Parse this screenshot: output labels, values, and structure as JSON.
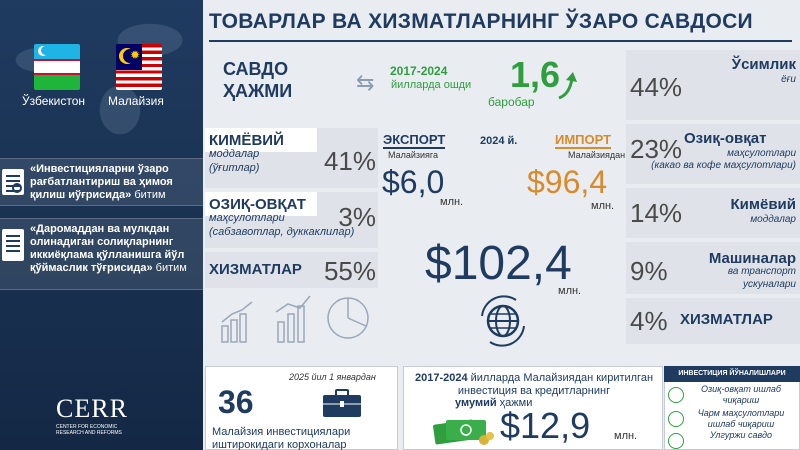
{
  "title": "ТОВАРЛАР ВА ХИЗМАТЛАРНИНГ ЎЗАРО САВДОСИ",
  "countries": {
    "left": "Ўзбекистон",
    "right": "Малайзия"
  },
  "agreements": [
    {
      "bold": "«Инвестицияларни ўзаро рағбатлантириш ва ҳимоя қилиш иўғрисида»",
      "suffix": "битим"
    },
    {
      "bold": "«Даромаддан ва мулкдан олинадиган солиқларнинг иккиёқлама қўлланишга йўл қўймаслик тўғрисида»",
      "suffix": "битим"
    }
  ],
  "logo": {
    "text": "CERR",
    "sub": "CENTER FOR ECONOMIC RESEARCH AND REFORMS"
  },
  "trade": {
    "label_line1": "САВДО",
    "label_line2": "ҲАЖМИ",
    "growth_years": "2017-2024",
    "growth_note": "йилларда ошди",
    "growth_value": "1,6",
    "growth_unit": "баробар"
  },
  "export": {
    "label": "ЭКСПОРТ",
    "country": "Малайзияга",
    "value": "$6,0",
    "unit": "млн.",
    "categories": [
      {
        "name": "КИМЁВИЙ",
        "sub1": "моддалар",
        "sub2": "(ўғитлар)",
        "pct": "41%"
      },
      {
        "name": "ОЗИҚ-ОВҚАТ",
        "sub1": "маҳсулотлари",
        "sub2": "(сабзавотлар, дуккаклилар)",
        "pct": "3%"
      },
      {
        "name": "ХИЗМАТЛАР",
        "sub1": "",
        "sub2": "",
        "pct": "55%"
      }
    ]
  },
  "year": "2024 й.",
  "import": {
    "label": "ИМПОРТ",
    "country": "Малайзиядан",
    "value": "$96,4",
    "unit": "млн.",
    "categories": [
      {
        "pct": "44%",
        "name": "Ўсимлик",
        "sub1": "ёғи",
        "sub2": ""
      },
      {
        "pct": "23%",
        "name": "Озиқ-овқат",
        "sub1": "маҳсулотлари",
        "sub2": "(какао ва кофе маҳсулотлари)"
      },
      {
        "pct": "14%",
        "name": "Кимёвий",
        "sub1": "моддалар",
        "sub2": ""
      },
      {
        "pct": "9%",
        "name": "Машиналар",
        "sub1": "ва транспорт",
        "sub2": "ускуналари"
      },
      {
        "pct": "4%",
        "name": "ХИЗМАТЛАР",
        "sub1": "",
        "sub2": ""
      }
    ]
  },
  "total": {
    "value": "$102,4",
    "unit": "млн."
  },
  "firms": {
    "date": "2025 йил 1 январдан",
    "count": "36",
    "text": "Малайзия инвестициялари иштирокидаги корхоналар"
  },
  "investment": {
    "line1_bold": "2017-2024",
    "line1_rest": "йилларда Малайзиядан киритилган инвестиция ва кредитларнинг",
    "total_bold": "умумий",
    "total_rest": "ҳажми",
    "value": "$12,9",
    "unit": "млн."
  },
  "directions": {
    "title": "ИНВЕСТИЦИЯ ЙЎНАЛИШЛАРИ",
    "items": [
      "Озиқ-овқат ишлаб чиқариш",
      "Чарм маҳсулотлари ишлаб чиқариш",
      "Улгуржи савдо"
    ]
  },
  "colors": {
    "navy": "#1f3b60",
    "green": "#2e9e3e",
    "orange": "#d98a2b"
  }
}
